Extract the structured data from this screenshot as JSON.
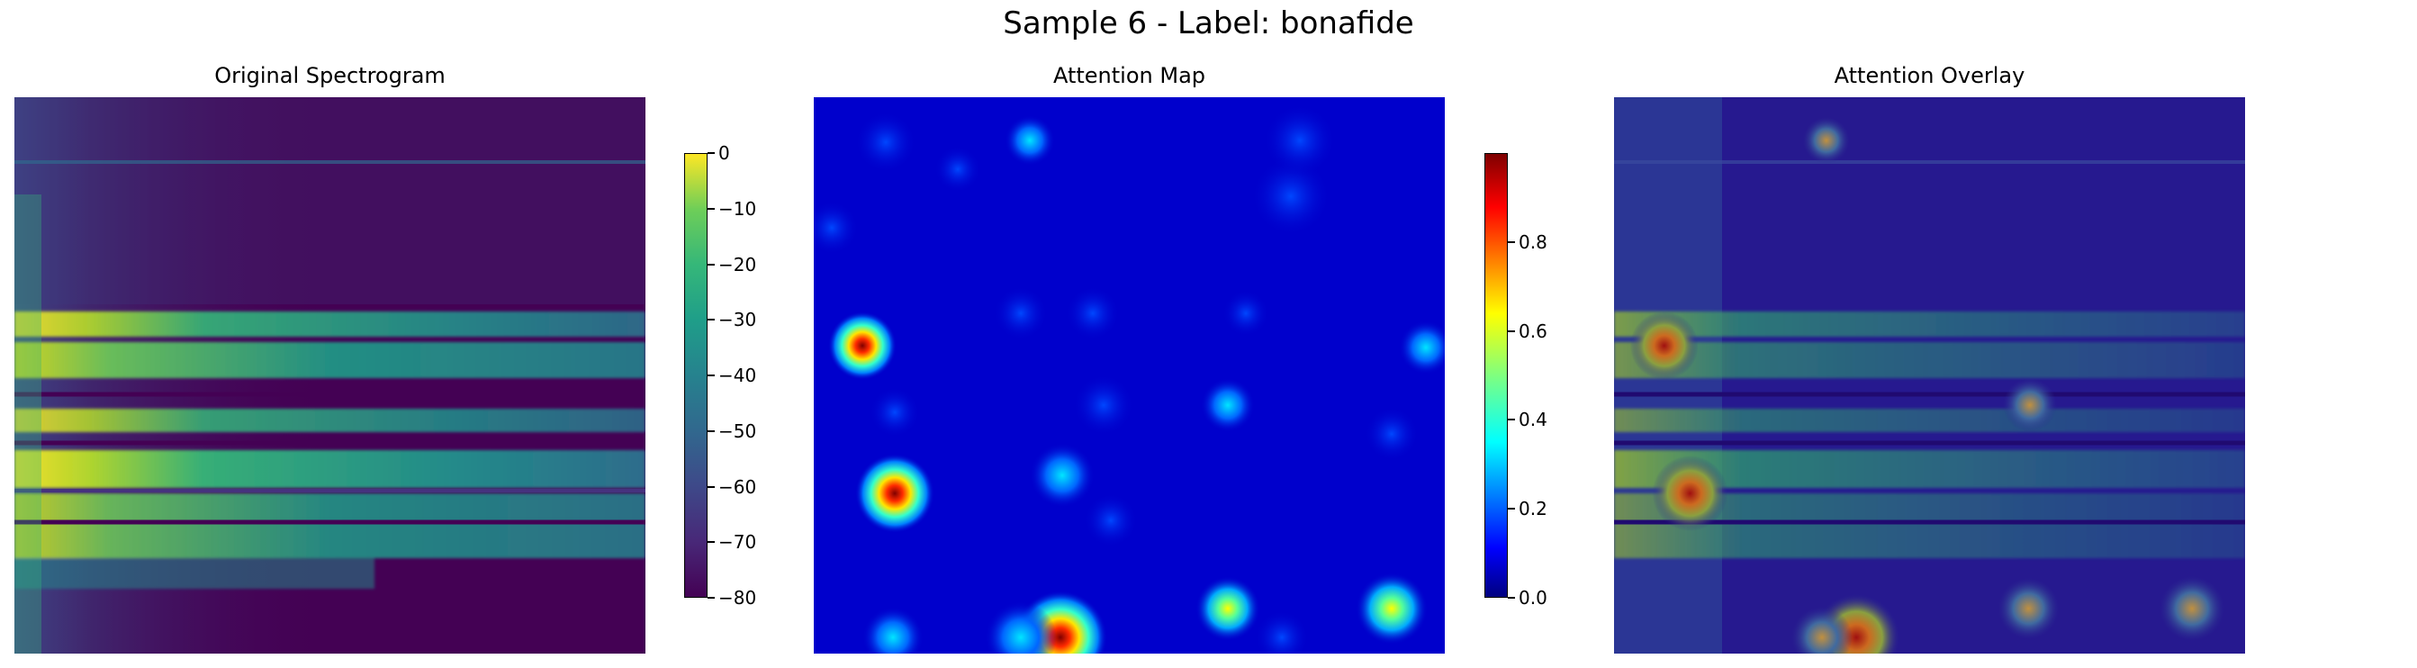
{
  "title": "Sample 6 - Label: bonafide",
  "chart_data": [
    {
      "type": "heatmap",
      "title": "Original Spectrogram",
      "colormap": "viridis",
      "colorbar": {
        "range": [
          -80,
          0
        ],
        "ticks": [
          0,
          -10,
          -20,
          -30,
          -40,
          -50,
          -60,
          -70,
          -80
        ],
        "tick_labels": [
          "0",
          "−10",
          "−20",
          "−30",
          "−40",
          "−50",
          "−60",
          "−70",
          "−80"
        ]
      },
      "axis": "off"
    },
    {
      "type": "heatmap",
      "title": "Attention Map",
      "colormap": "jet",
      "colorbar": {
        "range": [
          0,
          1
        ],
        "ticks": [
          0.0,
          0.2,
          0.4,
          0.6,
          0.8
        ],
        "tick_labels": [
          "0.0",
          "0.2",
          "0.4",
          "0.6",
          "0.8"
        ]
      },
      "axis": "off"
    },
    {
      "type": "heatmap",
      "title": "Attention Overlay",
      "colormap": "viridis + jet overlay",
      "axis": "off"
    }
  ]
}
